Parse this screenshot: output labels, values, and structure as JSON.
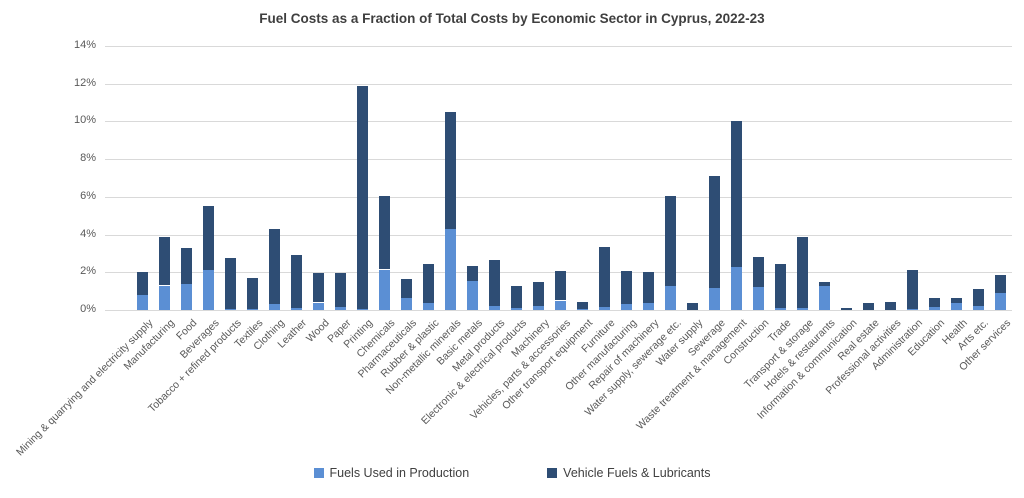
{
  "chart_data": {
    "type": "bar",
    "stacked": true,
    "title": "Fuel Costs as a Fraction of Total Costs by Economic Sector in Cyprus, 2022-23",
    "xlabel": "",
    "ylabel": "",
    "ylim": [
      0,
      14
    ],
    "y_ticks": [
      0,
      2,
      4,
      6,
      8,
      10,
      12,
      14
    ],
    "y_tick_labels": [
      "0%",
      "2%",
      "4%",
      "6%",
      "8%",
      "10%",
      "12%",
      "14%"
    ],
    "grid": true,
    "legend_position": "bottom",
    "categories": [
      "Mining & quarrying and electricity supply",
      "Manufacturing",
      "Food",
      "Beverages",
      "Tobacco + refined products",
      "Textiles",
      "Clothing",
      "Leather",
      "Wood",
      "Paper",
      "Printing",
      "Chemicals",
      "Pharmaceuticals",
      "Rubber & plastic",
      "Non-metallic minerals",
      "Basic metals",
      "Metal products",
      "Electronic & electrical products",
      "Machinery",
      "Vehicles, parts & accessories",
      "Other transport equipment",
      "Furniture",
      "Other manufacturing",
      "Repair of machinery",
      "Water supply, sewerage etc.",
      "Water supply",
      "Sewerage",
      "Waste treatment & management",
      "Construction",
      "Trade",
      "Transport & storage",
      "Hotels & restaurants",
      "Information & communication",
      "Real estate",
      "Professional activities",
      "Administration",
      "Education",
      "Health",
      "Arts etc.",
      "Other services"
    ],
    "series": [
      {
        "name": "Fuels Used in Production",
        "color": "#5b8fd4",
        "values": [
          0.8,
          1.3,
          1.4,
          2.1,
          0.05,
          0.05,
          0.3,
          0.1,
          0.4,
          0.15,
          0.05,
          2.15,
          0.65,
          0.35,
          4.3,
          1.55,
          0.2,
          0.1,
          0.2,
          0.5,
          0.05,
          0.15,
          0.3,
          0.35,
          1.25,
          0,
          1.15,
          2.3,
          1.2,
          0.1,
          0.1,
          1.25,
          0,
          0,
          0,
          0.05,
          0.15,
          0.35,
          0.2,
          0.9
        ]
      },
      {
        "name": "Vehicle Fuels & Lubricants",
        "color": "#2e4d74",
        "values": [
          1.2,
          2.55,
          1.9,
          3.4,
          2.7,
          1.65,
          4.0,
          2.8,
          1.55,
          1.8,
          11.85,
          3.9,
          1.0,
          2.1,
          6.2,
          0.8,
          2.45,
          1.15,
          1.3,
          1.55,
          0.4,
          3.2,
          1.75,
          1.65,
          4.8,
          0.35,
          5.95,
          7.75,
          1.6,
          2.35,
          3.75,
          0.25,
          0.1,
          0.4,
          0.45,
          2.05,
          0.5,
          0.3,
          0.9,
          0.95
        ]
      }
    ]
  },
  "colors": {
    "gridline": "#d9d9d9",
    "axis_text": "#595959",
    "title_text": "#3f3f3f",
    "legend_text": "#404040",
    "background": "#ffffff"
  }
}
